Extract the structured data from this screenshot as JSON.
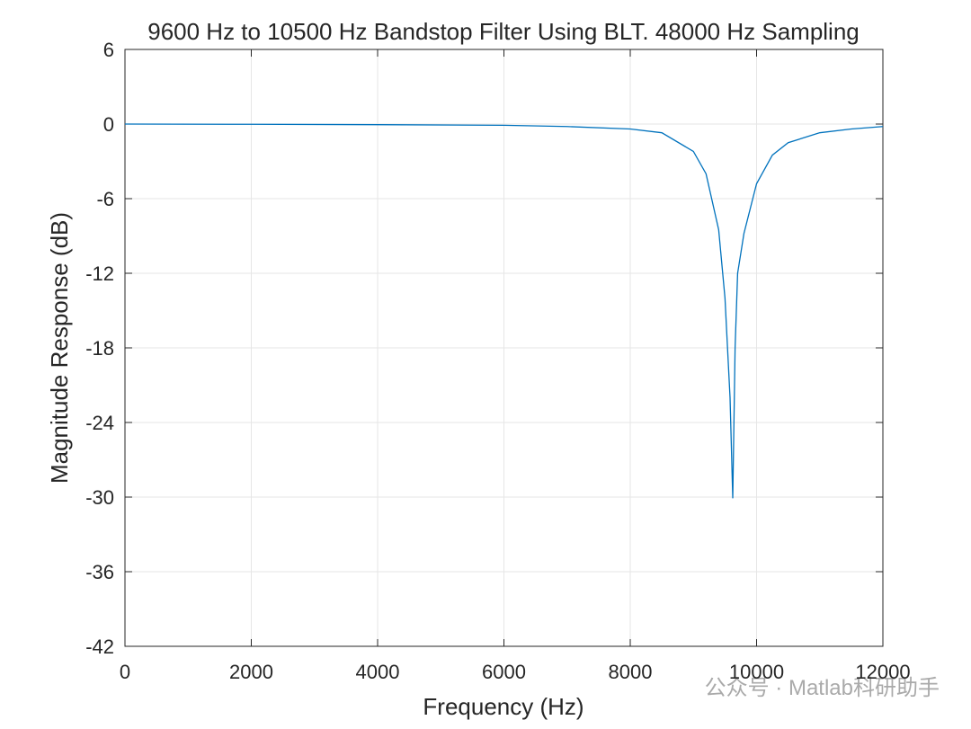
{
  "chart_data": {
    "type": "line",
    "title": "9600 Hz to 10500 Hz Bandstop Filter Using BLT. 48000 Hz Sampling",
    "x_label": "Frequency (Hz)",
    "y_label": "Magnitude Response (dB)",
    "x": [
      0,
      2000,
      4000,
      6000,
      7000,
      8000,
      8500,
      9000,
      9200,
      9400,
      9500,
      9580,
      9623,
      9660,
      9700,
      9800,
      10000,
      10250,
      10500,
      11000,
      11500,
      12000
    ],
    "series": [
      {
        "name": "Magnitude Response",
        "color": "#0072bd",
        "values": [
          0,
          -0.02,
          -0.05,
          -0.1,
          -0.2,
          -0.4,
          -0.7,
          -2.2,
          -4,
          -8.5,
          -14,
          -22,
          -30.1,
          -18,
          -12,
          -8.8,
          -4.8,
          -2.5,
          -1.5,
          -0.7,
          -0.4,
          -0.2
        ]
      }
    ],
    "xlim": [
      0,
      12000
    ],
    "xticks": [
      0,
      2000,
      4000,
      6000,
      8000,
      10000,
      12000
    ],
    "ylim": [
      -42,
      6
    ],
    "yticks": [
      -42,
      -36,
      -30,
      -24,
      -18,
      -12,
      -6,
      0,
      6
    ],
    "grid": true,
    "watermark": "公众号 · Matlab科研助手"
  }
}
